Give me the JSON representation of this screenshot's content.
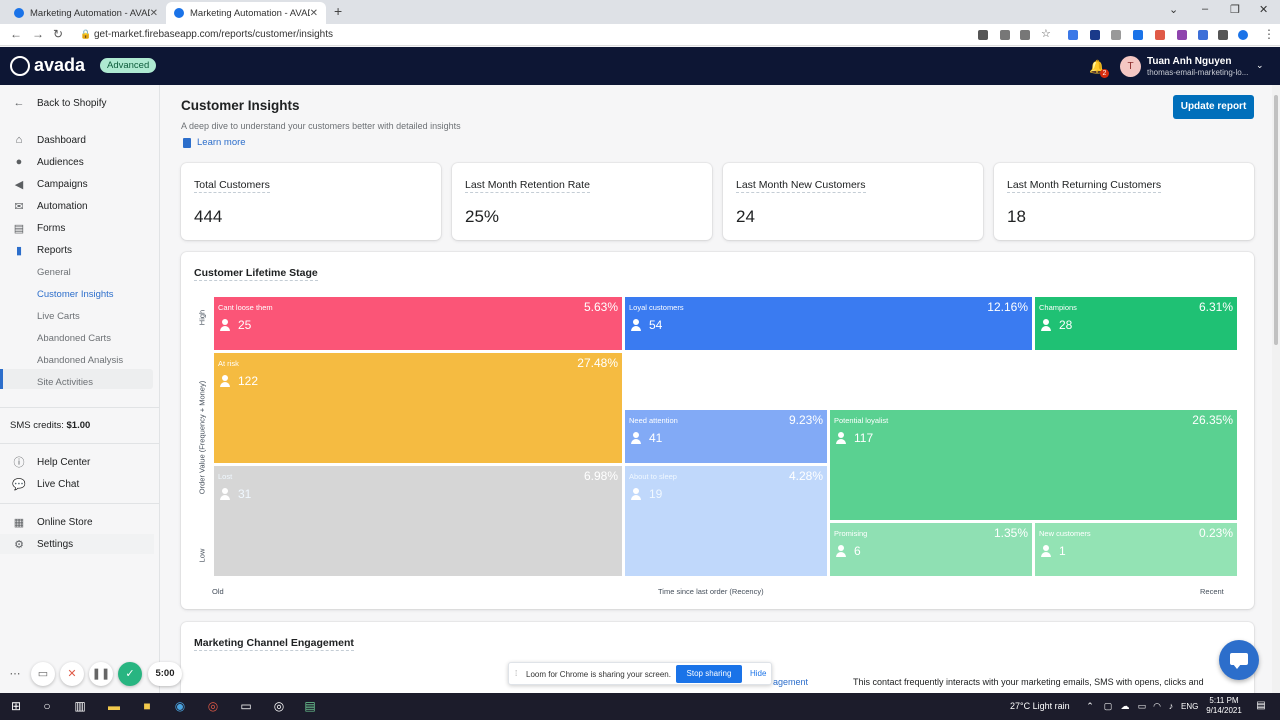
{
  "browser": {
    "tabs": [
      {
        "title": "Marketing Automation - AVADA",
        "active": false
      },
      {
        "title": "Marketing Automation - AVADA",
        "active": true
      }
    ],
    "new_tab": "+",
    "url": "get-market.firebaseapp.com/reports/customer/insights"
  },
  "header": {
    "brand": "avada",
    "plan_badge": "Advanced",
    "notification_count": "2",
    "user_initial": "T",
    "user_name": "Tuan Anh Nguyen",
    "user_store": "thomas-email-marketing-lo..."
  },
  "sidebar": {
    "back": "Back to Shopify",
    "items": [
      {
        "label": "Dashboard",
        "icon": "home-icon"
      },
      {
        "label": "Audiences",
        "icon": "person-icon"
      },
      {
        "label": "Campaigns",
        "icon": "megaphone-icon"
      },
      {
        "label": "Automation",
        "icon": "envelope-icon"
      },
      {
        "label": "Forms",
        "icon": "form-icon"
      },
      {
        "label": "Reports",
        "icon": "bar-chart-icon"
      }
    ],
    "report_subitems": [
      "General",
      "Customer Insights",
      "Live Carts",
      "Abandoned Carts",
      "Abandoned Analysis",
      "Site Activities"
    ],
    "selected_subitem": "Customer Insights",
    "sms_label": "SMS credits:",
    "sms_value": "$1.00",
    "help": "Help Center",
    "chat": "Live Chat",
    "store": "Online Store",
    "settings": "Settings"
  },
  "main": {
    "title": "Customer Insights",
    "description": "A deep dive to understand your customers better with detailed insights",
    "learn_more": "Learn more",
    "update_button": "Update report",
    "stats": [
      {
        "label": "Total Customers",
        "value": "444"
      },
      {
        "label": "Last Month Retention Rate",
        "value": "25%"
      },
      {
        "label": "Last Month New Customers",
        "value": "24"
      },
      {
        "label": "Last Month Returning Customers",
        "value": "18"
      }
    ],
    "lifetime": {
      "title": "Customer Lifetime Stage",
      "y_axis": "Order Value (Frequency + Money)",
      "y_high": "High",
      "y_low": "Low",
      "x_axis": "Time since last order (Recency)",
      "x_old": "Old",
      "x_recent": "Recent",
      "segments": [
        {
          "name": "Cant loose them",
          "percent": "5.63%",
          "count": "25",
          "color": "#fb5577"
        },
        {
          "name": "Loyal customers",
          "percent": "12.16%",
          "count": "54",
          "color": "#3a7bf1"
        },
        {
          "name": "Champions",
          "percent": "6.31%",
          "count": "28",
          "color": "#1fc174"
        },
        {
          "name": "At risk",
          "percent": "27.48%",
          "count": "122",
          "color": "#f5bb41"
        },
        {
          "name": "Need attention",
          "percent": "9.23%",
          "count": "41",
          "color": "#82aaf6"
        },
        {
          "name": "Potential loyalist",
          "percent": "26.35%",
          "count": "117",
          "color": "#5ad191"
        },
        {
          "name": "Lost",
          "percent": "6.98%",
          "count": "31",
          "color": "#d6d6d6"
        },
        {
          "name": "About to sleep",
          "percent": "4.28%",
          "count": "19",
          "color": "#c0d8fb"
        },
        {
          "name": "Promising",
          "percent": "1.35%",
          "count": "6",
          "color": "#8fe0b3"
        },
        {
          "name": "New customers",
          "percent": "0.23%",
          "count": "1",
          "color": "#93e3b4"
        }
      ]
    },
    "channel": {
      "title": "Marketing Channel Engagement",
      "link": "agement",
      "description": "This contact frequently interacts with your marketing emails, SMS with opens, clicks and"
    }
  },
  "loom": {
    "text": "Loom for Chrome is sharing your screen.",
    "stop": "Stop sharing",
    "hide": "Hide"
  },
  "recorder": {
    "timer": "5:00"
  },
  "taskbar": {
    "weather": "27°C  Light rain",
    "lang": "ENG",
    "time": "5:11 PM",
    "date": "9/14/2021"
  }
}
